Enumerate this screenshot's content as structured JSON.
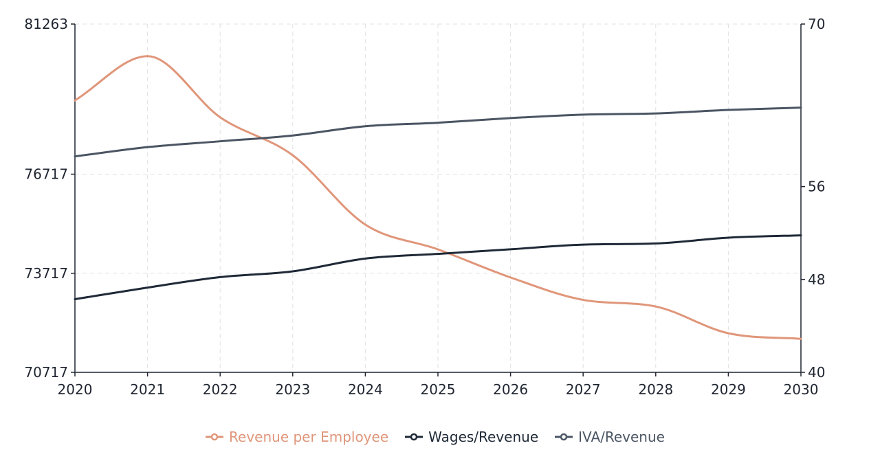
{
  "chart_data": {
    "type": "line",
    "x": [
      2020,
      2021,
      2022,
      2023,
      2024,
      2025,
      2026,
      2027,
      2028,
      2029,
      2030
    ],
    "x_ticks": [
      "2020",
      "2021",
      "2022",
      "2023",
      "2024",
      "2025",
      "2026",
      "2027",
      "2028",
      "2029",
      "2030"
    ],
    "xlim": [
      2020,
      2030
    ],
    "y_left": {
      "lim": [
        70717,
        81263
      ],
      "ticks": [
        "81263",
        "76717",
        "73717",
        "70717"
      ],
      "tick_values": [
        81263,
        76717,
        73717,
        70717
      ]
    },
    "y_right": {
      "lim": [
        40,
        70
      ],
      "ticks": [
        "70",
        "56",
        "48",
        "40"
      ],
      "tick_values": [
        70,
        56,
        48,
        40
      ]
    },
    "grid": true,
    "legend_position": "bottom",
    "series": [
      {
        "name": "Revenue per Employee",
        "axis": "left",
        "color": "#e0967a",
        "values": [
          78950,
          80290,
          78440,
          77290,
          75190,
          74440,
          73590,
          72910,
          72710,
          71900,
          71730
        ]
      },
      {
        "name": "Wages/Revenue",
        "axis": "right",
        "color": "#1f2937",
        "values": [
          46.3,
          47.3,
          48.2,
          48.7,
          49.8,
          50.2,
          50.6,
          51.0,
          51.1,
          51.6,
          51.8
        ]
      },
      {
        "name": "IVA/Revenue",
        "axis": "right",
        "color": "#4b5563",
        "values": [
          58.6,
          59.4,
          59.9,
          60.4,
          61.2,
          61.5,
          61.9,
          62.2,
          62.3,
          62.6,
          62.8
        ]
      }
    ]
  }
}
